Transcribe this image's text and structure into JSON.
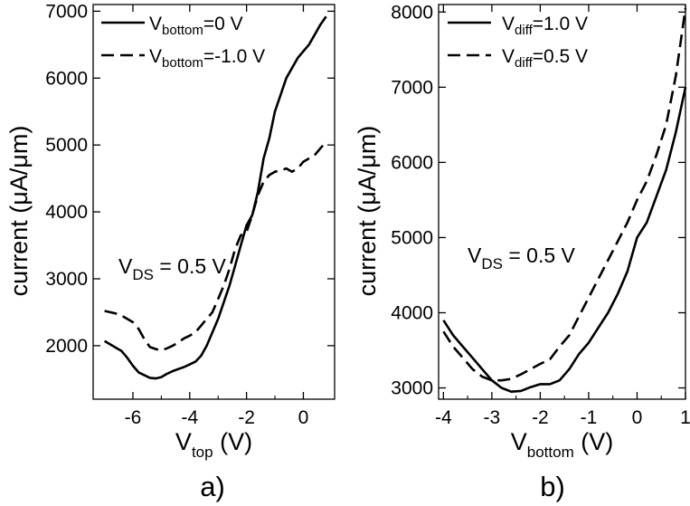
{
  "chart_data": [
    {
      "type": "line",
      "panel_label": "a)",
      "xlabel_main": "V",
      "xlabel_sub": "top",
      "xlabel_unit": " (V)",
      "ylabel": "current (μA/μm)",
      "xlim": [
        -7.4,
        1.1
      ],
      "ylim": [
        1200,
        7100
      ],
      "xticks": [
        -6,
        -4,
        -2,
        0
      ],
      "yticks": [
        2000,
        3000,
        4000,
        5000,
        6000,
        7000
      ],
      "annotation": {
        "main": "V",
        "sub": "DS",
        "rest": " = 0.5 V"
      },
      "series": [
        {
          "name": "Vbottom=0 V",
          "legend_main": "V",
          "legend_sub": "bottom",
          "legend_rest": "=0 V",
          "dash": "solid",
          "x": [
            -7.0,
            -6.8,
            -6.6,
            -6.4,
            -6.2,
            -6.0,
            -5.8,
            -5.6,
            -5.4,
            -5.2,
            -5.0,
            -4.8,
            -4.6,
            -4.4,
            -4.2,
            -4.0,
            -3.8,
            -3.6,
            -3.4,
            -3.2,
            -3.0,
            -2.8,
            -2.6,
            -2.4,
            -2.2,
            -2.0,
            -1.8,
            -1.6,
            -1.4,
            -1.2,
            -1.0,
            -0.8,
            -0.6,
            -0.4,
            -0.2,
            0.0,
            0.2,
            0.4,
            0.6,
            0.8
          ],
          "y": [
            2070,
            2020,
            1970,
            1920,
            1820,
            1700,
            1600,
            1560,
            1520,
            1510,
            1530,
            1580,
            1620,
            1650,
            1680,
            1720,
            1760,
            1850,
            2000,
            2200,
            2400,
            2650,
            2900,
            3200,
            3500,
            3800,
            3950,
            4300,
            4800,
            5100,
            5500,
            5750,
            6000,
            6150,
            6300,
            6400,
            6500,
            6650,
            6800,
            6920
          ]
        },
        {
          "name": "Vbottom=-1.0 V",
          "legend_main": "V",
          "legend_sub": "bottom",
          "legend_rest": "=-1.0 V",
          "dash": "dashed",
          "x": [
            -7.0,
            -6.8,
            -6.6,
            -6.4,
            -6.2,
            -6.0,
            -5.8,
            -5.6,
            -5.4,
            -5.2,
            -5.0,
            -4.8,
            -4.6,
            -4.4,
            -4.2,
            -4.0,
            -3.8,
            -3.6,
            -3.4,
            -3.2,
            -3.0,
            -2.8,
            -2.6,
            -2.4,
            -2.2,
            -2.0,
            -1.8,
            -1.6,
            -1.4,
            -1.2,
            -1.0,
            -0.8,
            -0.6,
            -0.4,
            -0.2,
            0.0,
            0.2,
            0.4,
            0.6,
            0.8
          ],
          "y": [
            2520,
            2500,
            2480,
            2450,
            2400,
            2350,
            2250,
            2100,
            1980,
            1950,
            1930,
            1960,
            2000,
            2050,
            2110,
            2150,
            2200,
            2300,
            2400,
            2500,
            2700,
            2900,
            3150,
            3450,
            3650,
            3700,
            3950,
            4250,
            4450,
            4550,
            4600,
            4620,
            4650,
            4600,
            4650,
            4750,
            4800,
            4850,
            4950,
            5050
          ]
        }
      ]
    },
    {
      "type": "line",
      "panel_label": "b)",
      "xlabel_main": "V",
      "xlabel_sub": "bottom",
      "xlabel_unit": " (V)",
      "ylabel": "current (μA/μm)",
      "xlim": [
        -4.1,
        1.0
      ],
      "ylim": [
        2850,
        8100
      ],
      "xticks": [
        -4,
        -3,
        -2,
        -1,
        0,
        1
      ],
      "yticks": [
        3000,
        4000,
        5000,
        6000,
        7000,
        8000
      ],
      "annotation": {
        "main": "V",
        "sub": "DS",
        "rest": " = 0.5 V"
      },
      "series": [
        {
          "name": "Vdiff=1.0 V",
          "legend_main": "V",
          "legend_sub": "diff",
          "legend_rest": "=1.0 V",
          "dash": "solid",
          "x": [
            -4.0,
            -3.8,
            -3.6,
            -3.4,
            -3.2,
            -3.0,
            -2.8,
            -2.6,
            -2.4,
            -2.2,
            -2.0,
            -1.8,
            -1.6,
            -1.4,
            -1.2,
            -1.0,
            -0.8,
            -0.6,
            -0.4,
            -0.2,
            0.0,
            0.2,
            0.4,
            0.6,
            0.8,
            1.0
          ],
          "y": [
            3900,
            3700,
            3550,
            3400,
            3250,
            3100,
            3000,
            2950,
            2960,
            3010,
            3050,
            3050,
            3100,
            3250,
            3450,
            3600,
            3800,
            4000,
            4250,
            4550,
            5000,
            5200,
            5550,
            5900,
            6400,
            7000
          ]
        },
        {
          "name": "Vdiff=0.5 V",
          "legend_main": "V",
          "legend_sub": "diff",
          "legend_rest": "=0.5 V",
          "dash": "dashed",
          "x": [
            -4.0,
            -3.8,
            -3.6,
            -3.4,
            -3.2,
            -3.0,
            -2.8,
            -2.6,
            -2.4,
            -2.2,
            -2.0,
            -1.8,
            -1.6,
            -1.4,
            -1.2,
            -1.0,
            -0.8,
            -0.6,
            -0.4,
            -0.2,
            0.0,
            0.2,
            0.4,
            0.6,
            0.8,
            1.0
          ],
          "y": [
            3750,
            3550,
            3400,
            3250,
            3150,
            3100,
            3100,
            3120,
            3180,
            3250,
            3320,
            3380,
            3550,
            3700,
            3950,
            4200,
            4450,
            4700,
            4950,
            5200,
            5500,
            5750,
            6100,
            6500,
            7150,
            8050
          ]
        }
      ]
    }
  ]
}
